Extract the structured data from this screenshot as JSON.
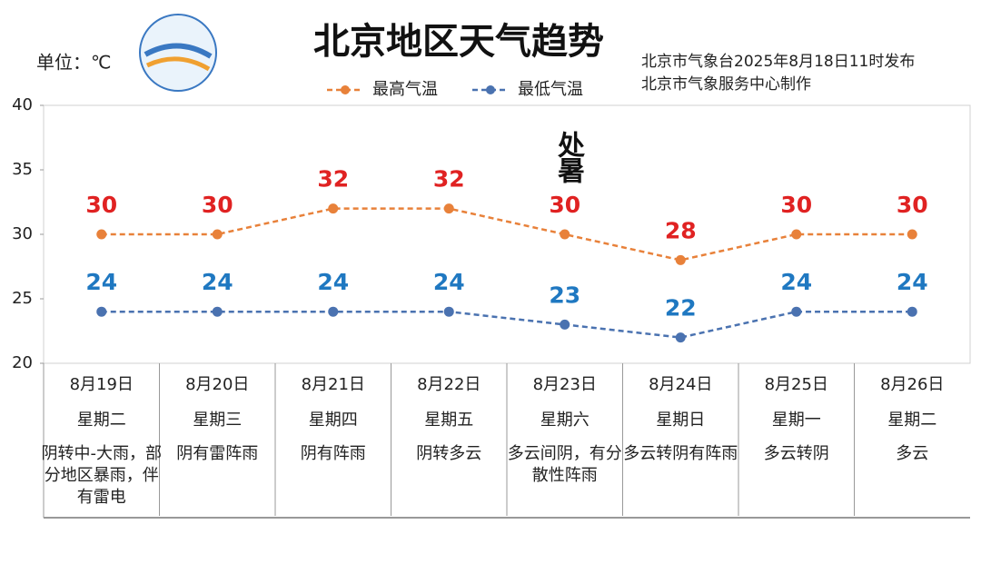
{
  "chart_data": {
    "type": "line",
    "title": "北京地区天气趋势",
    "unit_label": "单位：℃",
    "publisher": [
      "北京市气象台2025年8月18日11时发布",
      "北京市气象服务中心制作"
    ],
    "annotation": "处暑",
    "categories": [
      "8月19日",
      "8月20日",
      "8月21日",
      "8月22日",
      "8月23日",
      "8月24日",
      "8月25日",
      "8月26日"
    ],
    "weekdays": [
      "星期二",
      "星期三",
      "星期四",
      "星期五",
      "星期六",
      "星期日",
      "星期一",
      "星期二"
    ],
    "weather": [
      "阴转中-大雨，部分地区暴雨，伴有雷电",
      "阴有雷阵雨",
      "阴有阵雨",
      "阴转多云",
      "多云间阴，有分散性阵雨",
      "多云转阴有阵雨",
      "多云转阴",
      "多云"
    ],
    "series": [
      {
        "name": "最高气温",
        "color": "#e8813a",
        "label_color": "#e02222",
        "values": [
          30,
          30,
          32,
          32,
          30,
          28,
          30,
          30
        ]
      },
      {
        "name": "最低气温",
        "color": "#4a72b0",
        "label_color": "#1f78c1",
        "values": [
          24,
          24,
          24,
          24,
          23,
          22,
          24,
          24
        ]
      }
    ],
    "line_style": "dashed",
    "ylim": [
      20,
      40
    ],
    "yticks": [
      20,
      25,
      30,
      35,
      40
    ],
    "grid": false
  }
}
